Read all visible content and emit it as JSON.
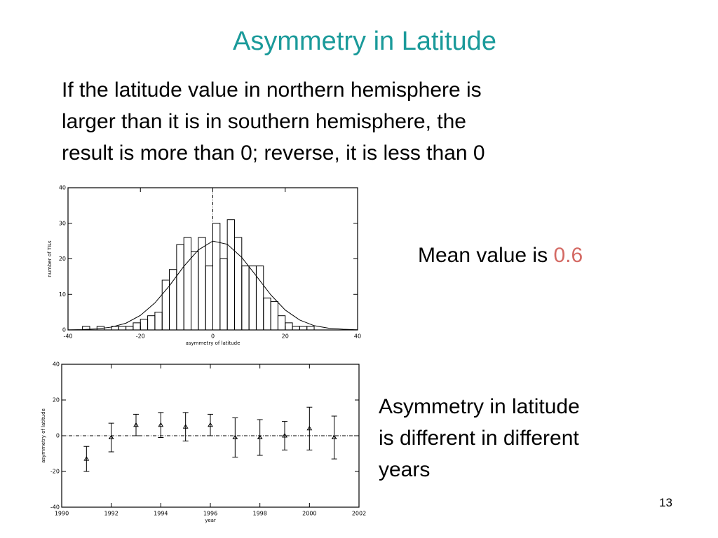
{
  "title": "Asymmetry in Latitude",
  "body_text": [
    "If the latitude value in northern hemisphere is",
    "larger than it is in southern hemisphere, the",
    "result is more than 0; reverse, it is less than 0"
  ],
  "mean_label": "Mean value is",
  "mean_value": 0.6,
  "years_text": [
    "Asymmetry in latitude",
    "is different in different",
    "years"
  ],
  "page_number": 13,
  "chart_data": [
    {
      "type": "histogram",
      "xlabel": "asymmetry of latitude",
      "ylabel": "number of TILs",
      "bins": [
        -36,
        -34,
        -32,
        -30,
        -28,
        -26,
        -24,
        -22,
        -20,
        -18,
        -16,
        -14,
        -12,
        -10,
        -8,
        -6,
        -4,
        -2,
        0,
        2,
        4,
        6,
        8,
        10,
        12,
        14,
        16,
        18,
        20,
        22,
        24,
        26,
        28,
        30
      ],
      "values": [
        1,
        0,
        1,
        0,
        1,
        1,
        1,
        2,
        3,
        4,
        5,
        14,
        17,
        24,
        26,
        22,
        26,
        18,
        30,
        20,
        31,
        26,
        18,
        18,
        18,
        9,
        8,
        4,
        2,
        1,
        1,
        1,
        0
      ],
      "fit": {
        "x": [
          -40,
          -36,
          -32,
          -28,
          -24,
          -20,
          -16,
          -12,
          -8,
          -4,
          0,
          4,
          8,
          12,
          16,
          20,
          24,
          28,
          32,
          36,
          40
        ],
        "values": [
          0.02,
          0.1,
          0.3,
          0.8,
          1.9,
          4.1,
          7.6,
          12.4,
          17.9,
          22.5,
          25,
          24.1,
          20.4,
          15.2,
          9.9,
          5.6,
          2.8,
          1.2,
          0.5,
          0.2,
          0.05
        ]
      },
      "vline": 0,
      "color": "#000000",
      "xlim": [
        -40,
        40
      ],
      "xticks": [
        -40,
        -20,
        0,
        20,
        40
      ],
      "ylim": [
        0,
        40
      ],
      "yticks": [
        0,
        10,
        20,
        30,
        40
      ]
    },
    {
      "type": "errorbar",
      "xlabel": "year",
      "ylabel": "asymmetry of latitude",
      "x": [
        1991,
        1992,
        1993,
        1994,
        1995,
        1996,
        1997,
        1998,
        1999,
        2000,
        2001
      ],
      "values": [
        -13,
        -1,
        6,
        6,
        5,
        6,
        -1,
        -1,
        0,
        4,
        -1
      ],
      "errors": [
        7,
        8,
        6,
        7,
        8,
        6,
        11,
        10,
        8,
        12,
        12
      ],
      "hline": 0,
      "color": "#000000",
      "xlim": [
        1990,
        2002
      ],
      "xticks": [
        1990,
        1992,
        1994,
        1996,
        1998,
        2000,
        2002
      ],
      "ylim": [
        -40,
        40
      ],
      "yticks": [
        -40,
        -20,
        0,
        20,
        40
      ]
    }
  ]
}
